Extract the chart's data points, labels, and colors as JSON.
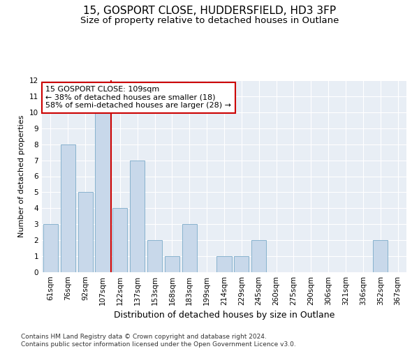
{
  "title1": "15, GOSPORT CLOSE, HUDDERSFIELD, HD3 3FP",
  "title2": "Size of property relative to detached houses in Outlane",
  "xlabel": "Distribution of detached houses by size in Outlane",
  "ylabel": "Number of detached properties",
  "categories": [
    "61sqm",
    "76sqm",
    "92sqm",
    "107sqm",
    "122sqm",
    "137sqm",
    "153sqm",
    "168sqm",
    "183sqm",
    "199sqm",
    "214sqm",
    "229sqm",
    "245sqm",
    "260sqm",
    "275sqm",
    "290sqm",
    "306sqm",
    "321sqm",
    "336sqm",
    "352sqm",
    "367sqm"
  ],
  "values": [
    3,
    8,
    5,
    10,
    4,
    7,
    2,
    1,
    3,
    0,
    1,
    1,
    2,
    0,
    0,
    0,
    0,
    0,
    0,
    2,
    0
  ],
  "bar_color": "#c8d8ea",
  "bar_edge_color": "#7aaac8",
  "vline_x": 3.5,
  "vline_color": "#cc0000",
  "annotation_text": "15 GOSPORT CLOSE: 109sqm\n← 38% of detached houses are smaller (18)\n58% of semi-detached houses are larger (28) →",
  "annotation_box_color": "#ffffff",
  "annotation_box_edge": "#cc0000",
  "ylim": [
    0,
    12
  ],
  "yticks": [
    0,
    1,
    2,
    3,
    4,
    5,
    6,
    7,
    8,
    9,
    10,
    11,
    12
  ],
  "footer": "Contains HM Land Registry data © Crown copyright and database right 2024.\nContains public sector information licensed under the Open Government Licence v3.0.",
  "bg_color": "#ffffff",
  "plot_bg_color": "#e8eef5",
  "grid_color": "#ffffff",
  "title1_fontsize": 11,
  "title2_fontsize": 9.5,
  "xlabel_fontsize": 9,
  "ylabel_fontsize": 8,
  "tick_fontsize": 7.5,
  "annot_fontsize": 8,
  "footer_fontsize": 6.5
}
